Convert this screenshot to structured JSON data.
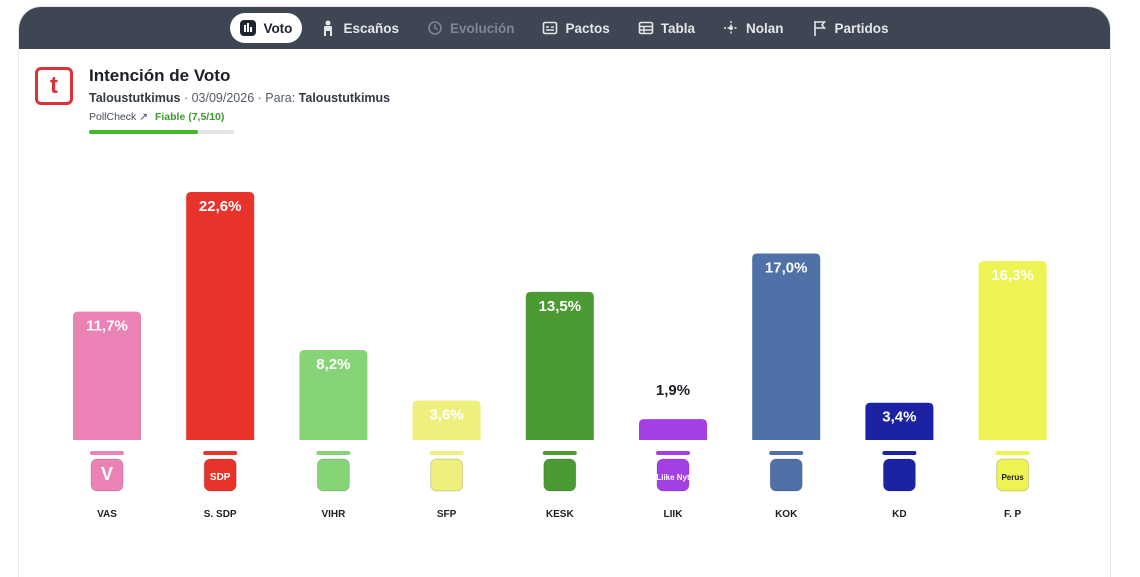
{
  "nav": {
    "tabs": [
      {
        "label": "Voto",
        "icon": "bar-chart-icon",
        "state": "active"
      },
      {
        "label": "Escaños",
        "icon": "seat-icon",
        "state": "normal"
      },
      {
        "label": "Evolución",
        "icon": "history-icon",
        "state": "disabled"
      },
      {
        "label": "Pactos",
        "icon": "pacts-icon",
        "state": "normal"
      },
      {
        "label": "Tabla",
        "icon": "table-icon",
        "state": "normal"
      },
      {
        "label": "Nolan",
        "icon": "nolan-icon",
        "state": "normal"
      },
      {
        "label": "Partidos",
        "icon": "flag-icon",
        "state": "normal"
      }
    ]
  },
  "header": {
    "logo_letter": "t",
    "title": "Intención de Voto",
    "pollster": "Taloustutkimus",
    "sep1": "·",
    "date": "03/09/2026",
    "sep2": "·",
    "para_label": "Para:",
    "client": "Taloustutkimus",
    "pollcheck_label": "PollCheck",
    "pollcheck_rating": "Fiable (7,5/10)",
    "pollcheck_score": 0.75
  },
  "colors": {
    "accent": "#d6343a",
    "nav_bg": "#3f4653",
    "pollcheck_green": "#47b52d"
  },
  "chart_data": {
    "type": "bar",
    "title": "",
    "xlabel": "",
    "ylabel": "",
    "ylim": [
      0,
      25
    ],
    "categories": [
      "VAS",
      "S. SDP",
      "VIHR",
      "SFP",
      "KESK",
      "LIIK",
      "KOK",
      "KD",
      "F. P"
    ],
    "values": [
      11.7,
      22.6,
      8.2,
      3.6,
      13.5,
      1.9,
      17.0,
      3.4,
      16.3
    ],
    "value_labels": [
      "11,7%",
      "22,6%",
      "8,2%",
      "3,6%",
      "13,5%",
      "1,9%",
      "17,0%",
      "3,4%",
      "16,3%"
    ],
    "colors": [
      "#ea82b6",
      "#e8332a",
      "#86d477",
      "#eef07d",
      "#4b9a33",
      "#a43fe6",
      "#5071a7",
      "#1b23a4",
      "#ecf352"
    ],
    "label_colors": [
      "#ffffff",
      "#ffffff",
      "#ffffff",
      "#ffffff",
      "#ffffff",
      "#1c1f26",
      "#ffffff",
      "#ffffff",
      "#ffffff"
    ],
    "logo_text": [
      "V",
      "SDP",
      "",
      "",
      "",
      "Liike Nyt",
      "",
      "",
      "Perus"
    ],
    "grid": false
  }
}
